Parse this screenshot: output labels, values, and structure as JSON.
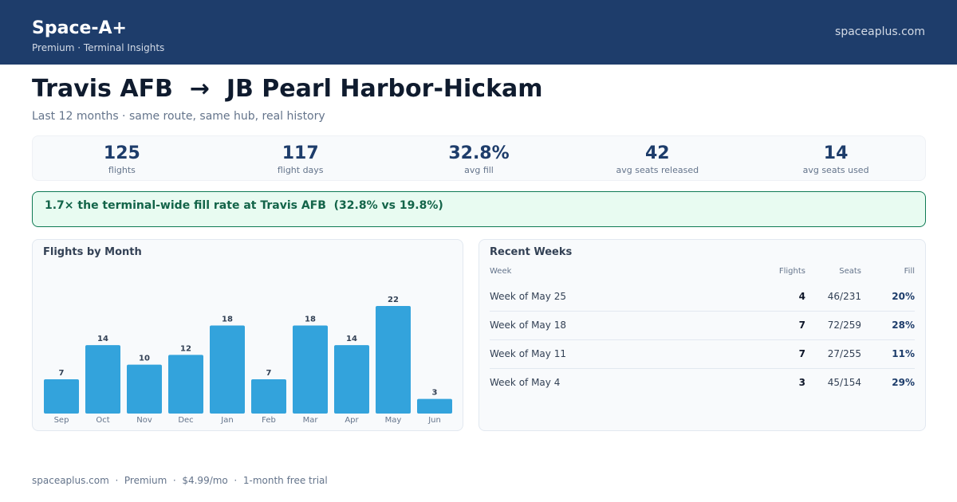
{
  "header": {
    "brand": "Space-A+",
    "subtitle": "Premium · Terminal Insights",
    "link": "spaceaplus.com"
  },
  "route": {
    "title": "Travis AFB  →  JB Pearl Harbor-Hickam",
    "subtitle": "Last 12 months · same route, same hub, real history"
  },
  "stats": [
    {
      "value": "125",
      "label": "flights"
    },
    {
      "value": "117",
      "label": "flight days"
    },
    {
      "value": "32.8%",
      "label": "avg fill"
    },
    {
      "value": "42",
      "label": "avg seats released"
    },
    {
      "value": "14",
      "label": "avg seats used"
    }
  ],
  "banner": {
    "text": "1.7× the terminal-wide fill rate at Travis AFB  (32.8% vs 19.8%)"
  },
  "flights_panel": {
    "title": "Flights by Month"
  },
  "chart_data": {
    "type": "bar",
    "title": "Flights by Month",
    "categories": [
      "Sep",
      "Oct",
      "Nov",
      "Dec",
      "Jan",
      "Feb",
      "Mar",
      "Apr",
      "May",
      "Jun"
    ],
    "values": [
      7,
      14,
      10,
      12,
      18,
      7,
      18,
      14,
      22,
      3
    ],
    "ylim": [
      0,
      22
    ],
    "bar_color": "#33a3dc",
    "grid": false,
    "data_labels": true
  },
  "weeks_panel": {
    "title": "Recent Weeks",
    "columns": {
      "week": "Week",
      "flights": "Flights",
      "seats": "Seats",
      "fill": "Fill"
    },
    "rows": [
      {
        "week": "Week of May 25",
        "flights": "4",
        "seats": "46/231",
        "fill": "20%"
      },
      {
        "week": "Week of May 18",
        "flights": "7",
        "seats": "72/259",
        "fill": "28%"
      },
      {
        "week": "Week of May 11",
        "flights": "7",
        "seats": "27/255",
        "fill": "11%"
      },
      {
        "week": "Week of May 4",
        "flights": "3",
        "seats": "45/154",
        "fill": "29%"
      }
    ]
  },
  "footer": {
    "text": "spaceaplus.com  ·  Premium  ·  $4.99/mo  ·  1-month free trial"
  },
  "colors": {
    "header_bg": "#1e3d6b",
    "accent": "#1e3d6b",
    "bar": "#33a3dc",
    "banner_bg": "#e8fbf1",
    "banner_border": "#0f7a54",
    "banner_text": "#136449"
  }
}
